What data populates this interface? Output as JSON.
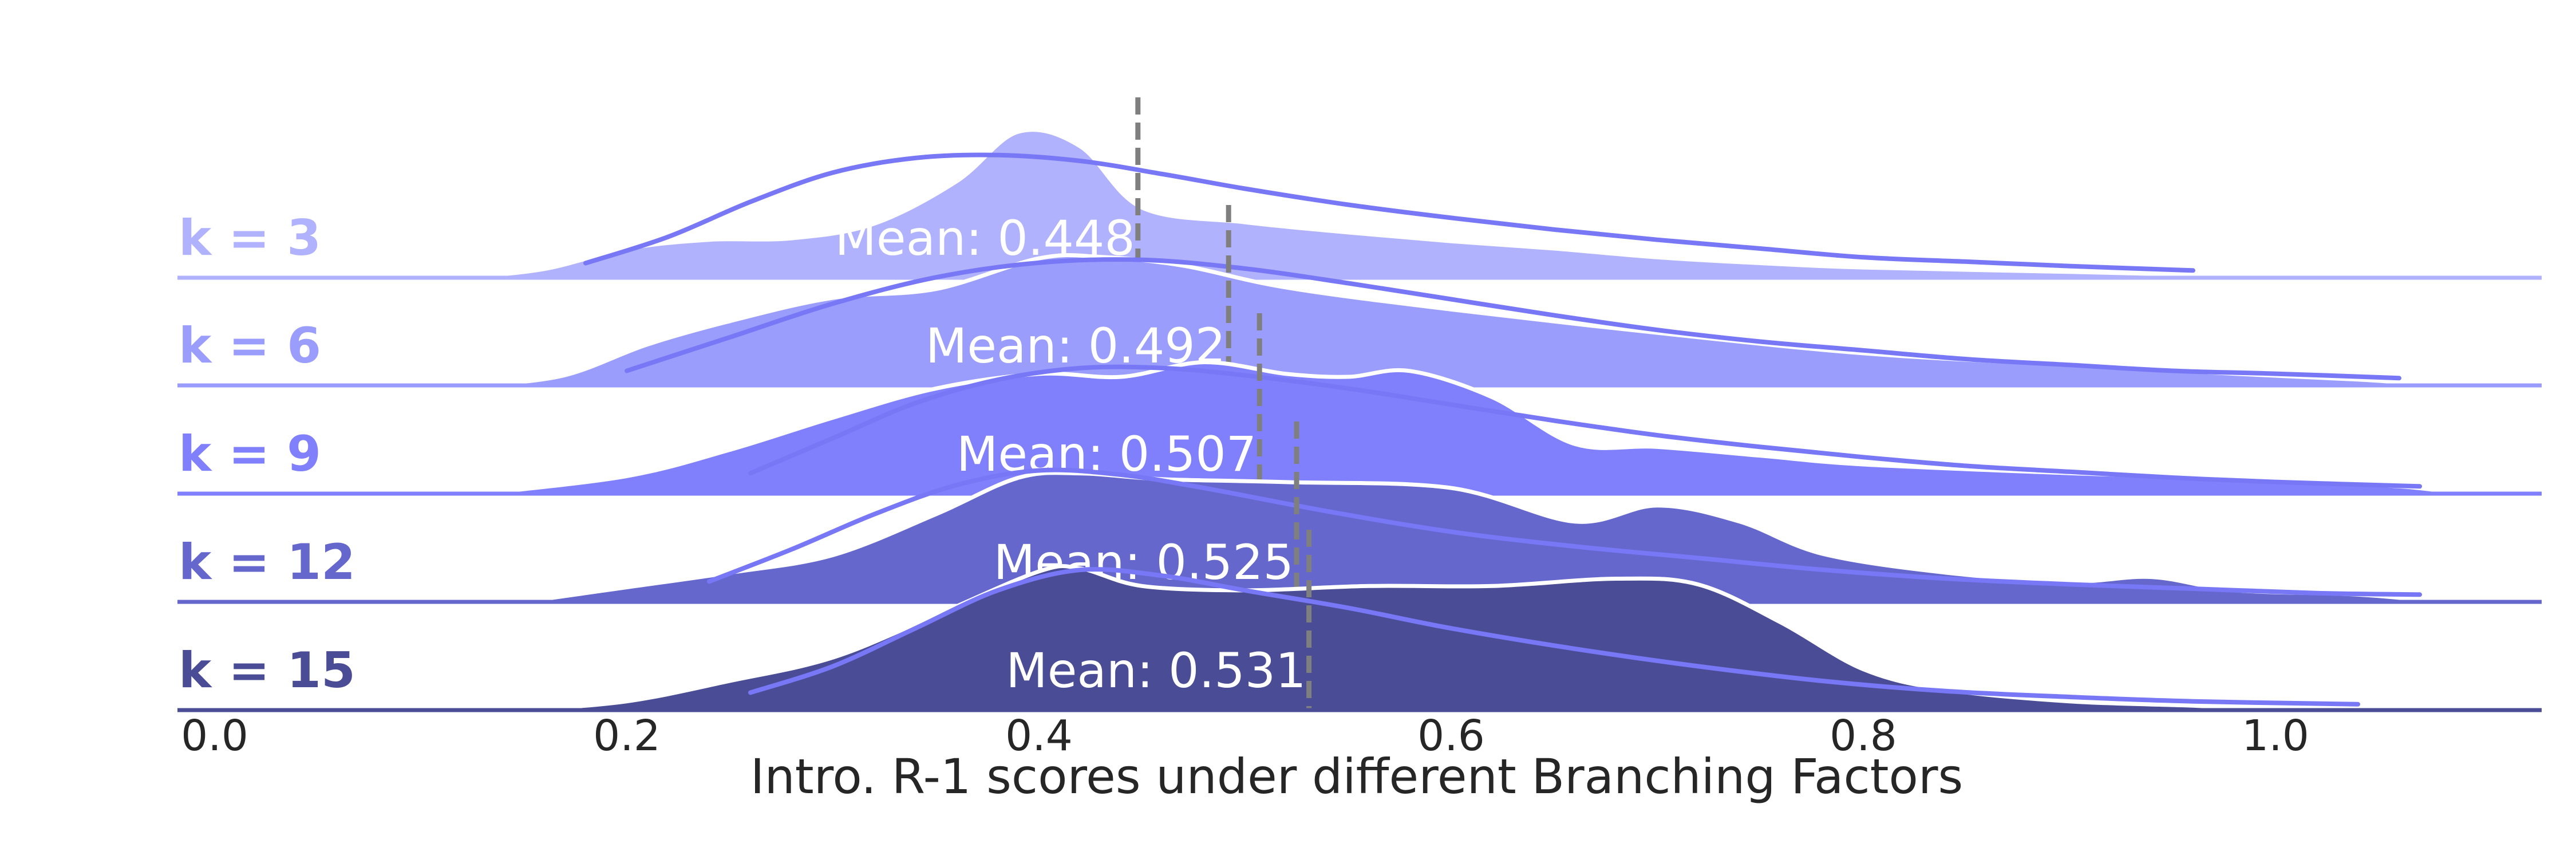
{
  "chart_data": {
    "type": "ridgeline",
    "xlabel": "Intro. R-1 scores under different Branching Factors",
    "xlim": [
      -0.02,
      1.125
    ],
    "x_ticks": [
      0.0,
      0.2,
      0.4,
      0.6,
      0.8,
      1.0
    ],
    "x_tick_labels": [
      "0.0",
      "0.2",
      "0.4",
      "0.6",
      "0.8",
      "1.0"
    ],
    "grid": false,
    "mean_prefix": "Mean: ",
    "series": [
      {
        "name": "k = 3",
        "color": "#b1b2fd",
        "mean": 0.448,
        "density": [
          [
            0.12,
            0
          ],
          [
            0.16,
            0.06
          ],
          [
            0.2,
            0.2
          ],
          [
            0.24,
            0.26
          ],
          [
            0.28,
            0.27
          ],
          [
            0.32,
            0.37
          ],
          [
            0.36,
            0.66
          ],
          [
            0.39,
            1.0
          ],
          [
            0.42,
            0.9
          ],
          [
            0.45,
            0.48
          ],
          [
            0.5,
            0.38
          ],
          [
            0.55,
            0.31
          ],
          [
            0.6,
            0.25
          ],
          [
            0.65,
            0.2
          ],
          [
            0.7,
            0.14
          ],
          [
            0.75,
            0.1
          ],
          [
            0.8,
            0.07
          ],
          [
            0.9,
            0.04
          ],
          [
            0.96,
            0.02
          ],
          [
            0.98,
            0
          ]
        ],
        "fit": [
          [
            0.18,
            0.1
          ],
          [
            0.22,
            0.28
          ],
          [
            0.26,
            0.52
          ],
          [
            0.3,
            0.72
          ],
          [
            0.34,
            0.82
          ],
          [
            0.38,
            0.84
          ],
          [
            0.42,
            0.8
          ],
          [
            0.46,
            0.71
          ],
          [
            0.5,
            0.61
          ],
          [
            0.55,
            0.5
          ],
          [
            0.6,
            0.41
          ],
          [
            0.65,
            0.33
          ],
          [
            0.7,
            0.26
          ],
          [
            0.75,
            0.2
          ],
          [
            0.8,
            0.14
          ],
          [
            0.85,
            0.11
          ],
          [
            0.9,
            0.08
          ],
          [
            0.96,
            0.05
          ]
        ]
      },
      {
        "name": "k = 6",
        "color": "#9b9dfd",
        "mean": 0.492,
        "density": [
          [
            0.13,
            0
          ],
          [
            0.17,
            0.07
          ],
          [
            0.21,
            0.28
          ],
          [
            0.25,
            0.44
          ],
          [
            0.3,
            0.6
          ],
          [
            0.35,
            0.66
          ],
          [
            0.4,
            0.87
          ],
          [
            0.43,
            0.88
          ],
          [
            0.47,
            0.82
          ],
          [
            0.52,
            0.67
          ],
          [
            0.6,
            0.52
          ],
          [
            0.7,
            0.36
          ],
          [
            0.8,
            0.22
          ],
          [
            0.9,
            0.14
          ],
          [
            0.98,
            0.08
          ],
          [
            1.04,
            0.04
          ],
          [
            1.08,
            0
          ]
        ],
        "fit": [
          [
            0.2,
            0.1
          ],
          [
            0.25,
            0.33
          ],
          [
            0.3,
            0.56
          ],
          [
            0.35,
            0.74
          ],
          [
            0.4,
            0.84
          ],
          [
            0.45,
            0.86
          ],
          [
            0.5,
            0.8
          ],
          [
            0.55,
            0.7
          ],
          [
            0.6,
            0.59
          ],
          [
            0.65,
            0.48
          ],
          [
            0.7,
            0.38
          ],
          [
            0.75,
            0.3
          ],
          [
            0.8,
            0.24
          ],
          [
            0.85,
            0.18
          ],
          [
            0.9,
            0.14
          ],
          [
            0.95,
            0.1
          ],
          [
            1.0,
            0.08
          ],
          [
            1.06,
            0.05
          ]
        ]
      },
      {
        "name": "k = 9",
        "color": "#8080fc",
        "mean": 0.507,
        "density": [
          [
            0.13,
            0
          ],
          [
            0.2,
            0.12
          ],
          [
            0.25,
            0.3
          ],
          [
            0.3,
            0.52
          ],
          [
            0.35,
            0.72
          ],
          [
            0.4,
            0.82
          ],
          [
            0.44,
            0.8
          ],
          [
            0.48,
            0.9
          ],
          [
            0.52,
            0.82
          ],
          [
            0.55,
            0.8
          ],
          [
            0.58,
            0.84
          ],
          [
            0.62,
            0.66
          ],
          [
            0.66,
            0.34
          ],
          [
            0.7,
            0.32
          ],
          [
            0.75,
            0.26
          ],
          [
            0.8,
            0.2
          ],
          [
            0.9,
            0.14
          ],
          [
            0.95,
            0.12
          ],
          [
            1.0,
            0.09
          ],
          [
            1.06,
            0.05
          ],
          [
            1.09,
            0
          ]
        ],
        "fit": [
          [
            0.26,
            0.14
          ],
          [
            0.3,
            0.38
          ],
          [
            0.34,
            0.62
          ],
          [
            0.38,
            0.78
          ],
          [
            0.42,
            0.86
          ],
          [
            0.46,
            0.86
          ],
          [
            0.5,
            0.81
          ],
          [
            0.55,
            0.72
          ],
          [
            0.6,
            0.61
          ],
          [
            0.65,
            0.5
          ],
          [
            0.7,
            0.4
          ],
          [
            0.75,
            0.32
          ],
          [
            0.8,
            0.25
          ],
          [
            0.85,
            0.19
          ],
          [
            0.9,
            0.15
          ],
          [
            0.95,
            0.11
          ],
          [
            1.0,
            0.08
          ],
          [
            1.07,
            0.05
          ]
        ]
      },
      {
        "name": "k = 12",
        "color": "#6567cc",
        "mean": 0.525,
        "density": [
          [
            0.15,
            0
          ],
          [
            0.2,
            0.1
          ],
          [
            0.25,
            0.2
          ],
          [
            0.3,
            0.32
          ],
          [
            0.35,
            0.6
          ],
          [
            0.39,
            0.85
          ],
          [
            0.42,
            0.88
          ],
          [
            0.46,
            0.84
          ],
          [
            0.52,
            0.82
          ],
          [
            0.6,
            0.78
          ],
          [
            0.66,
            0.55
          ],
          [
            0.7,
            0.66
          ],
          [
            0.74,
            0.55
          ],
          [
            0.78,
            0.33
          ],
          [
            0.84,
            0.2
          ],
          [
            0.9,
            0.14
          ],
          [
            0.94,
            0.17
          ],
          [
            0.98,
            0.08
          ],
          [
            1.04,
            0.05
          ],
          [
            1.08,
            0
          ]
        ],
        "fit": [
          [
            0.24,
            0.14
          ],
          [
            0.28,
            0.36
          ],
          [
            0.32,
            0.6
          ],
          [
            0.36,
            0.8
          ],
          [
            0.4,
            0.9
          ],
          [
            0.44,
            0.87
          ],
          [
            0.48,
            0.78
          ],
          [
            0.54,
            0.62
          ],
          [
            0.6,
            0.48
          ],
          [
            0.66,
            0.38
          ],
          [
            0.72,
            0.3
          ],
          [
            0.78,
            0.22
          ],
          [
            0.84,
            0.16
          ],
          [
            0.9,
            0.12
          ],
          [
            0.96,
            0.09
          ],
          [
            1.02,
            0.06
          ],
          [
            1.07,
            0.05
          ]
        ]
      },
      {
        "name": "k = 15",
        "color": "#4a4d96",
        "mean": 0.531,
        "density": [
          [
            0.15,
            0
          ],
          [
            0.2,
            0.06
          ],
          [
            0.25,
            0.2
          ],
          [
            0.3,
            0.36
          ],
          [
            0.35,
            0.65
          ],
          [
            0.4,
            0.95
          ],
          [
            0.42,
            0.97
          ],
          [
            0.45,
            0.85
          ],
          [
            0.5,
            0.82
          ],
          [
            0.56,
            0.85
          ],
          [
            0.62,
            0.85
          ],
          [
            0.68,
            0.9
          ],
          [
            0.72,
            0.86
          ],
          [
            0.76,
            0.6
          ],
          [
            0.8,
            0.28
          ],
          [
            0.84,
            0.14
          ],
          [
            0.9,
            0.06
          ],
          [
            0.96,
            0.03
          ],
          [
            1.0,
            0
          ]
        ],
        "fit": [
          [
            0.26,
            0.12
          ],
          [
            0.3,
            0.3
          ],
          [
            0.34,
            0.56
          ],
          [
            0.38,
            0.82
          ],
          [
            0.42,
            0.96
          ],
          [
            0.46,
            0.92
          ],
          [
            0.5,
            0.82
          ],
          [
            0.55,
            0.7
          ],
          [
            0.6,
            0.56
          ],
          [
            0.66,
            0.42
          ],
          [
            0.72,
            0.3
          ],
          [
            0.78,
            0.2
          ],
          [
            0.84,
            0.13
          ],
          [
            0.9,
            0.09
          ],
          [
            0.96,
            0.06
          ],
          [
            1.04,
            0.04
          ]
        ]
      }
    ]
  },
  "colors": {
    "mean_line": "#7f7f7f",
    "fit_line": "#7878f6",
    "axis": "#333333",
    "mean_text": "#ffffff"
  }
}
